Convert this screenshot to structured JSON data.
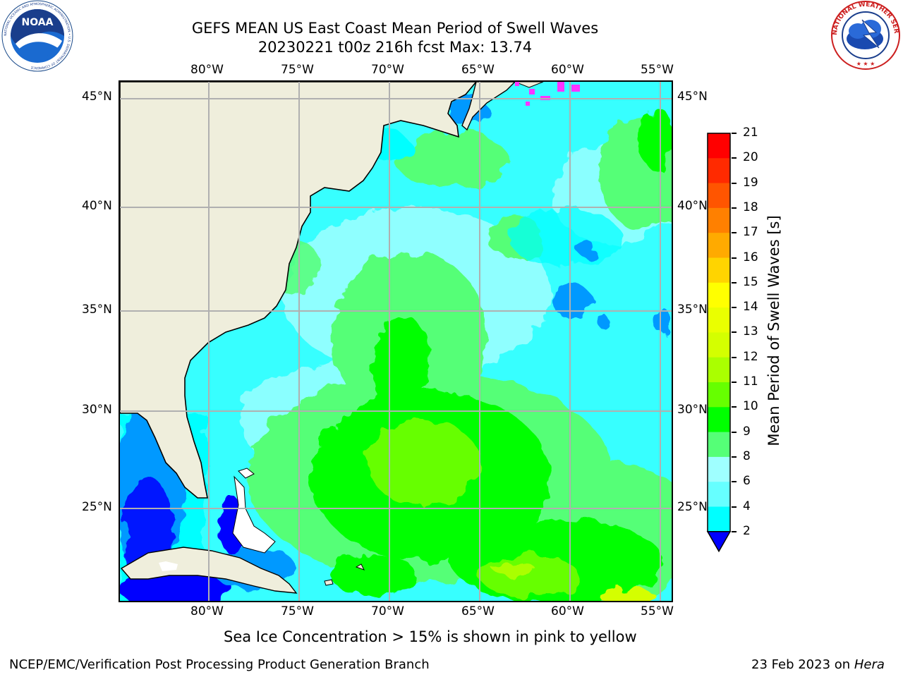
{
  "header": {
    "title_line1": "GEFS MEAN US East Coast Mean Period of Swell Waves",
    "title_line2": "20230221 t00z 216h fcst   Max: 13.74"
  },
  "logos": {
    "noaa_text": "NOAA",
    "noaa_ring_text": "NATIONAL OCEANIC AND ATMOSPHERIC ADMINISTRATION • U.S. DEPARTMENT OF COMMERCE",
    "nws_ring_text": "NATIONAL WEATHER SERVICE"
  },
  "map": {
    "lon_labels": [
      "80°W",
      "75°W",
      "70°W",
      "65°W",
      "60°W",
      "55°W"
    ],
    "lat_labels": [
      "45°N",
      "40°N",
      "35°N",
      "30°N",
      "25°N"
    ],
    "colors": {
      "land": "#efeedc",
      "coastline": "#000000",
      "grid": "#b0b0b0",
      "ice": "#ff33ff"
    }
  },
  "colorbar": {
    "label": "Mean Period of Swell Waves [s]",
    "ticks": [
      "21",
      "20",
      "19",
      "18",
      "17",
      "16",
      "15",
      "14",
      "13",
      "12",
      "11",
      "10",
      "9",
      "8",
      "6",
      "4",
      "2"
    ],
    "colors": [
      "#ff0000",
      "#ff2a00",
      "#ff5500",
      "#ff8000",
      "#ffaa00",
      "#ffd400",
      "#ffff00",
      "#eaff00",
      "#d4ff00",
      "#aaff00",
      "#66ff00",
      "#00ff00",
      "#55ff77",
      "#9fffff",
      "#66ffff",
      "#00ffff",
      "#0099ff",
      "#0000ff"
    ]
  },
  "footer": {
    "sea_ice_note": "Sea Ice Concentration > 15% is shown in pink to yellow",
    "left": "NCEP/EMC/Verification Post Processing Product Generation Branch",
    "right_prefix": "23 Feb 2023 on ",
    "right_machine": "Hera"
  }
}
